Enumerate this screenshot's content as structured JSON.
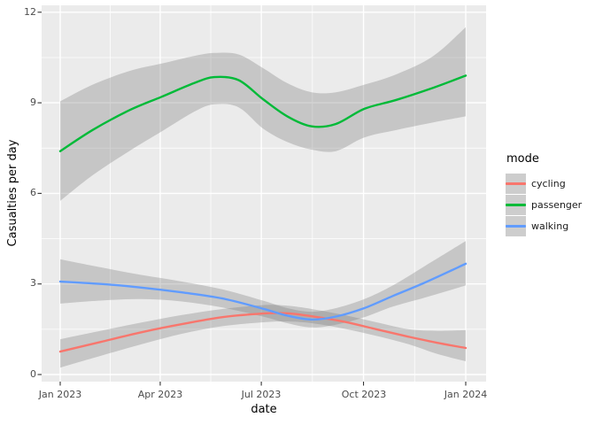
{
  "figure": {
    "background": "#FFFFFF",
    "panel_background": "#EBEBEB",
    "grid_color": "#FFFFFF",
    "band_fill": "rgba(120,120,120,0.32)",
    "axis_text_color": "#4D4D4D",
    "tick_mark_color": "#333333",
    "legend_key_background": "#CDCDCD"
  },
  "legend": {
    "title": "mode"
  },
  "chart_data": {
    "type": "line",
    "title": "",
    "xlabel": "date",
    "ylabel": "Casualties per day",
    "legend_title": "mode",
    "legend_position": "right",
    "grid": "white major and minor gridlines on gray panel",
    "smoothed": true,
    "confidence_interval": true,
    "ylim": [
      0,
      12
    ],
    "y_ticks": [
      0,
      3,
      6,
      9,
      12
    ],
    "y_minor_ticks": [
      1.5,
      4.5,
      7.5,
      10.5
    ],
    "x_tick_labels": [
      "Jan 2023",
      "Apr 2023",
      "Jul 2023",
      "Oct 2023",
      "Jan 2024"
    ],
    "x_tick_t": [
      0,
      0.2466,
      0.4959,
      0.7479,
      1
    ],
    "x_unit": "fraction of year from Jan 2023 to Jan 2024",
    "series": [
      {
        "name": "cycling",
        "color": "#F8766D",
        "t": [
          0,
          0.1,
          0.2,
          0.3,
          0.4,
          0.5,
          0.56,
          0.62,
          0.7,
          0.78,
          0.86,
          0.93,
          1
        ],
        "y": [
          0.76,
          1.08,
          1.4,
          1.67,
          1.9,
          2.02,
          2.03,
          1.93,
          1.75,
          1.5,
          1.25,
          1.05,
          0.88
        ],
        "ci_upper": [
          1.17,
          1.45,
          1.72,
          1.97,
          2.17,
          2.3,
          2.28,
          2.17,
          1.97,
          1.73,
          1.5,
          1.45,
          1.47
        ],
        "ci_lower": [
          0.23,
          0.62,
          1.0,
          1.35,
          1.6,
          1.73,
          1.76,
          1.7,
          1.52,
          1.28,
          1.0,
          0.68,
          0.44
        ]
      },
      {
        "name": "passenger",
        "color": "#00BA38",
        "t": [
          0,
          0.08,
          0.17,
          0.25,
          0.33,
          0.38,
          0.44,
          0.5,
          0.56,
          0.62,
          0.68,
          0.75,
          0.83,
          0.92,
          1
        ],
        "y": [
          7.4,
          8.1,
          8.75,
          9.2,
          9.65,
          9.85,
          9.75,
          9.12,
          8.55,
          8.22,
          8.3,
          8.8,
          9.1,
          9.5,
          9.9
        ],
        "ci_upper": [
          9.05,
          9.6,
          10.05,
          10.3,
          10.55,
          10.65,
          10.6,
          10.15,
          9.65,
          9.35,
          9.35,
          9.6,
          9.95,
          10.55,
          11.5
        ],
        "ci_lower": [
          5.75,
          6.6,
          7.4,
          8.05,
          8.7,
          8.95,
          8.85,
          8.15,
          7.7,
          7.45,
          7.4,
          7.85,
          8.1,
          8.35,
          8.55
        ]
      },
      {
        "name": "walking",
        "color": "#619CFF",
        "t": [
          0,
          0.1,
          0.2,
          0.3,
          0.4,
          0.5,
          0.56,
          0.62,
          0.68,
          0.75,
          0.82,
          0.9,
          1
        ],
        "y": [
          3.08,
          3.0,
          2.88,
          2.72,
          2.52,
          2.18,
          1.95,
          1.82,
          1.92,
          2.2,
          2.6,
          3.05,
          3.67
        ],
        "ci_upper": [
          3.82,
          3.55,
          3.3,
          3.08,
          2.82,
          2.45,
          2.2,
          2.08,
          2.2,
          2.5,
          2.95,
          3.6,
          4.42
        ],
        "ci_lower": [
          2.35,
          2.45,
          2.5,
          2.42,
          2.22,
          1.92,
          1.7,
          1.56,
          1.65,
          1.9,
          2.25,
          2.55,
          2.95
        ]
      }
    ]
  }
}
